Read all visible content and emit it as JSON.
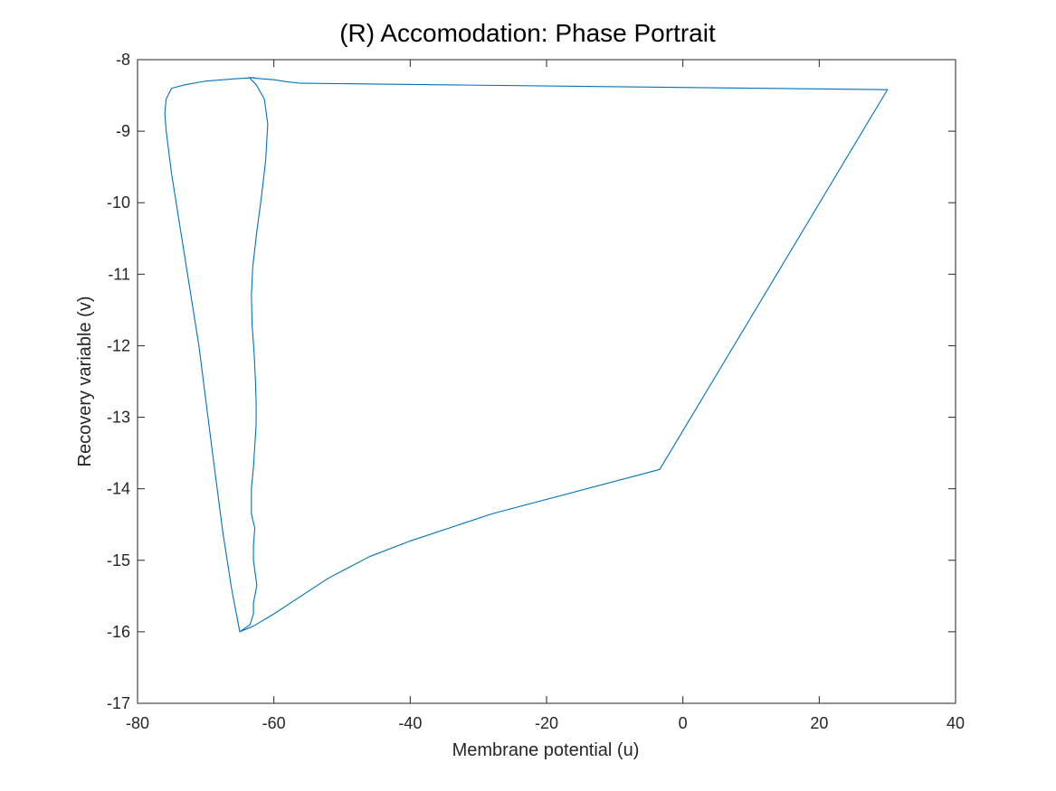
{
  "chart_data": {
    "type": "line",
    "title": "(R) Accomodation: Phase Portrait",
    "xlabel": "Membrane potential (u)",
    "ylabel": "Recovery variable (v)",
    "xlim": [
      -80,
      40
    ],
    "ylim": [
      -17,
      -8
    ],
    "xticks": [
      -80,
      -60,
      -40,
      -20,
      0,
      20,
      40
    ],
    "yticks": [
      -17,
      -16,
      -15,
      -14,
      -13,
      -12,
      -11,
      -10,
      -9,
      -8
    ],
    "grid": false,
    "line_color": "#0072BD",
    "axis_color": "#262626",
    "series": [
      {
        "x": [
          -65,
          -63.5,
          -63.0,
          -63.0,
          -62.5,
          -63.0,
          -63.0,
          -62.8,
          -63.3,
          -63.3,
          -63.3,
          -63.0,
          -62.8,
          -62.6,
          -62.6,
          -62.7,
          -62.9,
          -63.2,
          -63.3,
          -63.1,
          -62.5,
          -61.8,
          -61.2,
          -60.9,
          -61.4,
          -62.6,
          -63.6,
          -63.7,
          -63.4,
          -63.3,
          -63.3,
          -62.7,
          -60.0,
          -58.0,
          -56.0,
          -55.6,
          30.0,
          -3.4,
          -28.0,
          -40.0,
          -46.0,
          -52.0,
          -56.0,
          -60.0,
          -63.0,
          -65.0,
          -66.2,
          -67.5,
          -69.0,
          -71.0,
          -73.0,
          -75.0,
          -75.8,
          -76.0,
          -75.8,
          -75.0,
          -73.0,
          -70.0,
          -66.0,
          -62.8
        ],
        "y": [
          -16.0,
          -15.9,
          -15.75,
          -15.6,
          -15.35,
          -15.0,
          -14.8,
          -14.55,
          -14.35,
          -14.2,
          -14.0,
          -13.7,
          -13.4,
          -13.1,
          -12.8,
          -12.5,
          -12.1,
          -11.7,
          -11.3,
          -10.9,
          -10.4,
          -9.9,
          -9.4,
          -8.9,
          -8.55,
          -8.35,
          -8.25,
          -8.25,
          -8.25,
          -8.25,
          -8.25,
          -8.26,
          -8.28,
          -8.31,
          -8.33,
          -8.33,
          -8.42,
          -13.73,
          -14.35,
          -14.73,
          -14.95,
          -15.25,
          -15.5,
          -15.75,
          -15.92,
          -16.0,
          -15.4,
          -14.6,
          -13.5,
          -12.0,
          -10.8,
          -9.6,
          -9.0,
          -8.75,
          -8.55,
          -8.4,
          -8.35,
          -8.3,
          -8.27,
          -8.25
        ]
      }
    ]
  }
}
